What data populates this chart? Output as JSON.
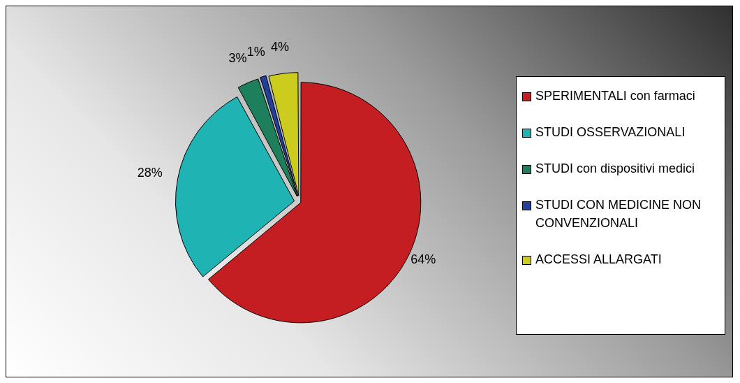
{
  "chart_data": {
    "type": "pie",
    "categories": [
      "SPERIMENTALI con farmaci",
      "STUDI OSSERVAZIONALI",
      "STUDI con dispositivi medici",
      "STUDI CON MEDICINE NON CONVENZIONALI",
      "ACCESSI ALLARGATI"
    ],
    "values": [
      64,
      28,
      3,
      1,
      4
    ],
    "value_labels": [
      "64%",
      "28%",
      "3%",
      "1%",
      "4%"
    ],
    "colors": [
      "#c41e22",
      "#1fb3b3",
      "#1e7f5c",
      "#233f9c",
      "#cccc1e"
    ],
    "legend": "right"
  }
}
